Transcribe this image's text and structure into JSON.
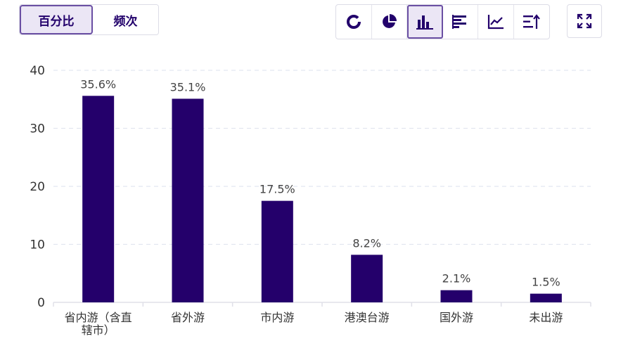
{
  "toolbar": {
    "mode_tabs": [
      {
        "label": "百分比",
        "active": true
      },
      {
        "label": "频次",
        "active": false
      }
    ],
    "chart_type_icons": [
      {
        "name": "donut-chart-icon",
        "active": false
      },
      {
        "name": "pie-chart-icon",
        "active": false
      },
      {
        "name": "bar-chart-icon",
        "active": true
      },
      {
        "name": "horizontal-bar-icon",
        "active": false
      },
      {
        "name": "line-chart-icon",
        "active": false
      },
      {
        "name": "sort-icon",
        "active": false
      }
    ],
    "fullscreen_icon": "fullscreen-icon"
  },
  "colors": {
    "bar": "#24006b",
    "accent": "#6a4fa3",
    "icon": "#22006b",
    "grid": "#e2e6f0"
  },
  "chart_data": {
    "type": "bar",
    "title": "",
    "xlabel": "",
    "ylabel": "",
    "categories": [
      "省内游（含直辖市）",
      "省外游",
      "市内游",
      "港澳台游",
      "国外游",
      "未出游"
    ],
    "category_lines": [
      [
        "省内游（含直",
        "辖市）"
      ],
      [
        "省外游"
      ],
      [
        "市内游"
      ],
      [
        "港澳台游"
      ],
      [
        "国外游"
      ],
      [
        "未出游"
      ]
    ],
    "values": [
      35.6,
      35.1,
      17.5,
      8.2,
      2.1,
      1.5
    ],
    "data_labels": [
      "35.6%",
      "35.1%",
      "17.5%",
      "8.2%",
      "2.1%",
      "1.5%"
    ],
    "ylim": [
      0,
      40
    ],
    "yticks": [
      0,
      10,
      20,
      30,
      40
    ],
    "grid": true,
    "legend": "none"
  }
}
